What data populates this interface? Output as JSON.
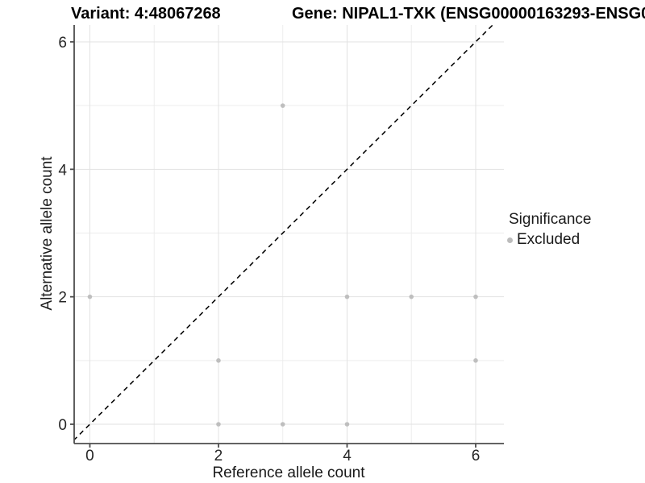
{
  "titles": {
    "variant": "Variant: 4:48067268",
    "gene": "Gene: NIPAL1-TXK (ENSG00000163293-ENSG0"
  },
  "legend": {
    "title": "Significance",
    "position": "right",
    "items": [
      {
        "label": "Excluded",
        "color": "#bcbcbc"
      }
    ]
  },
  "chart_data": {
    "type": "scatter",
    "xlabel": "Reference allele count",
    "ylabel": "Alternative allele count",
    "xlim": [
      -0.244,
      6.439
    ],
    "ylim": [
      -0.303,
      6.265
    ],
    "x_ticks": [
      0,
      2,
      4,
      6
    ],
    "y_ticks": [
      0,
      2,
      4,
      6
    ],
    "grid_major": [
      0,
      2,
      4,
      6
    ],
    "grid_minor": [
      1,
      3,
      5
    ],
    "grid": "on",
    "series": [
      {
        "name": "Excluded",
        "color": "#bcbcbc",
        "points": [
          [
            0,
            2
          ],
          [
            2,
            0
          ],
          [
            2,
            1
          ],
          [
            3,
            0
          ],
          [
            3,
            5
          ],
          [
            4,
            0
          ],
          [
            4,
            2
          ],
          [
            5,
            2
          ],
          [
            6,
            1
          ],
          [
            6,
            2
          ]
        ]
      }
    ],
    "reference_line": {
      "slope": 1,
      "intercept": 0,
      "style": "dashed",
      "color": "#000000"
    }
  }
}
